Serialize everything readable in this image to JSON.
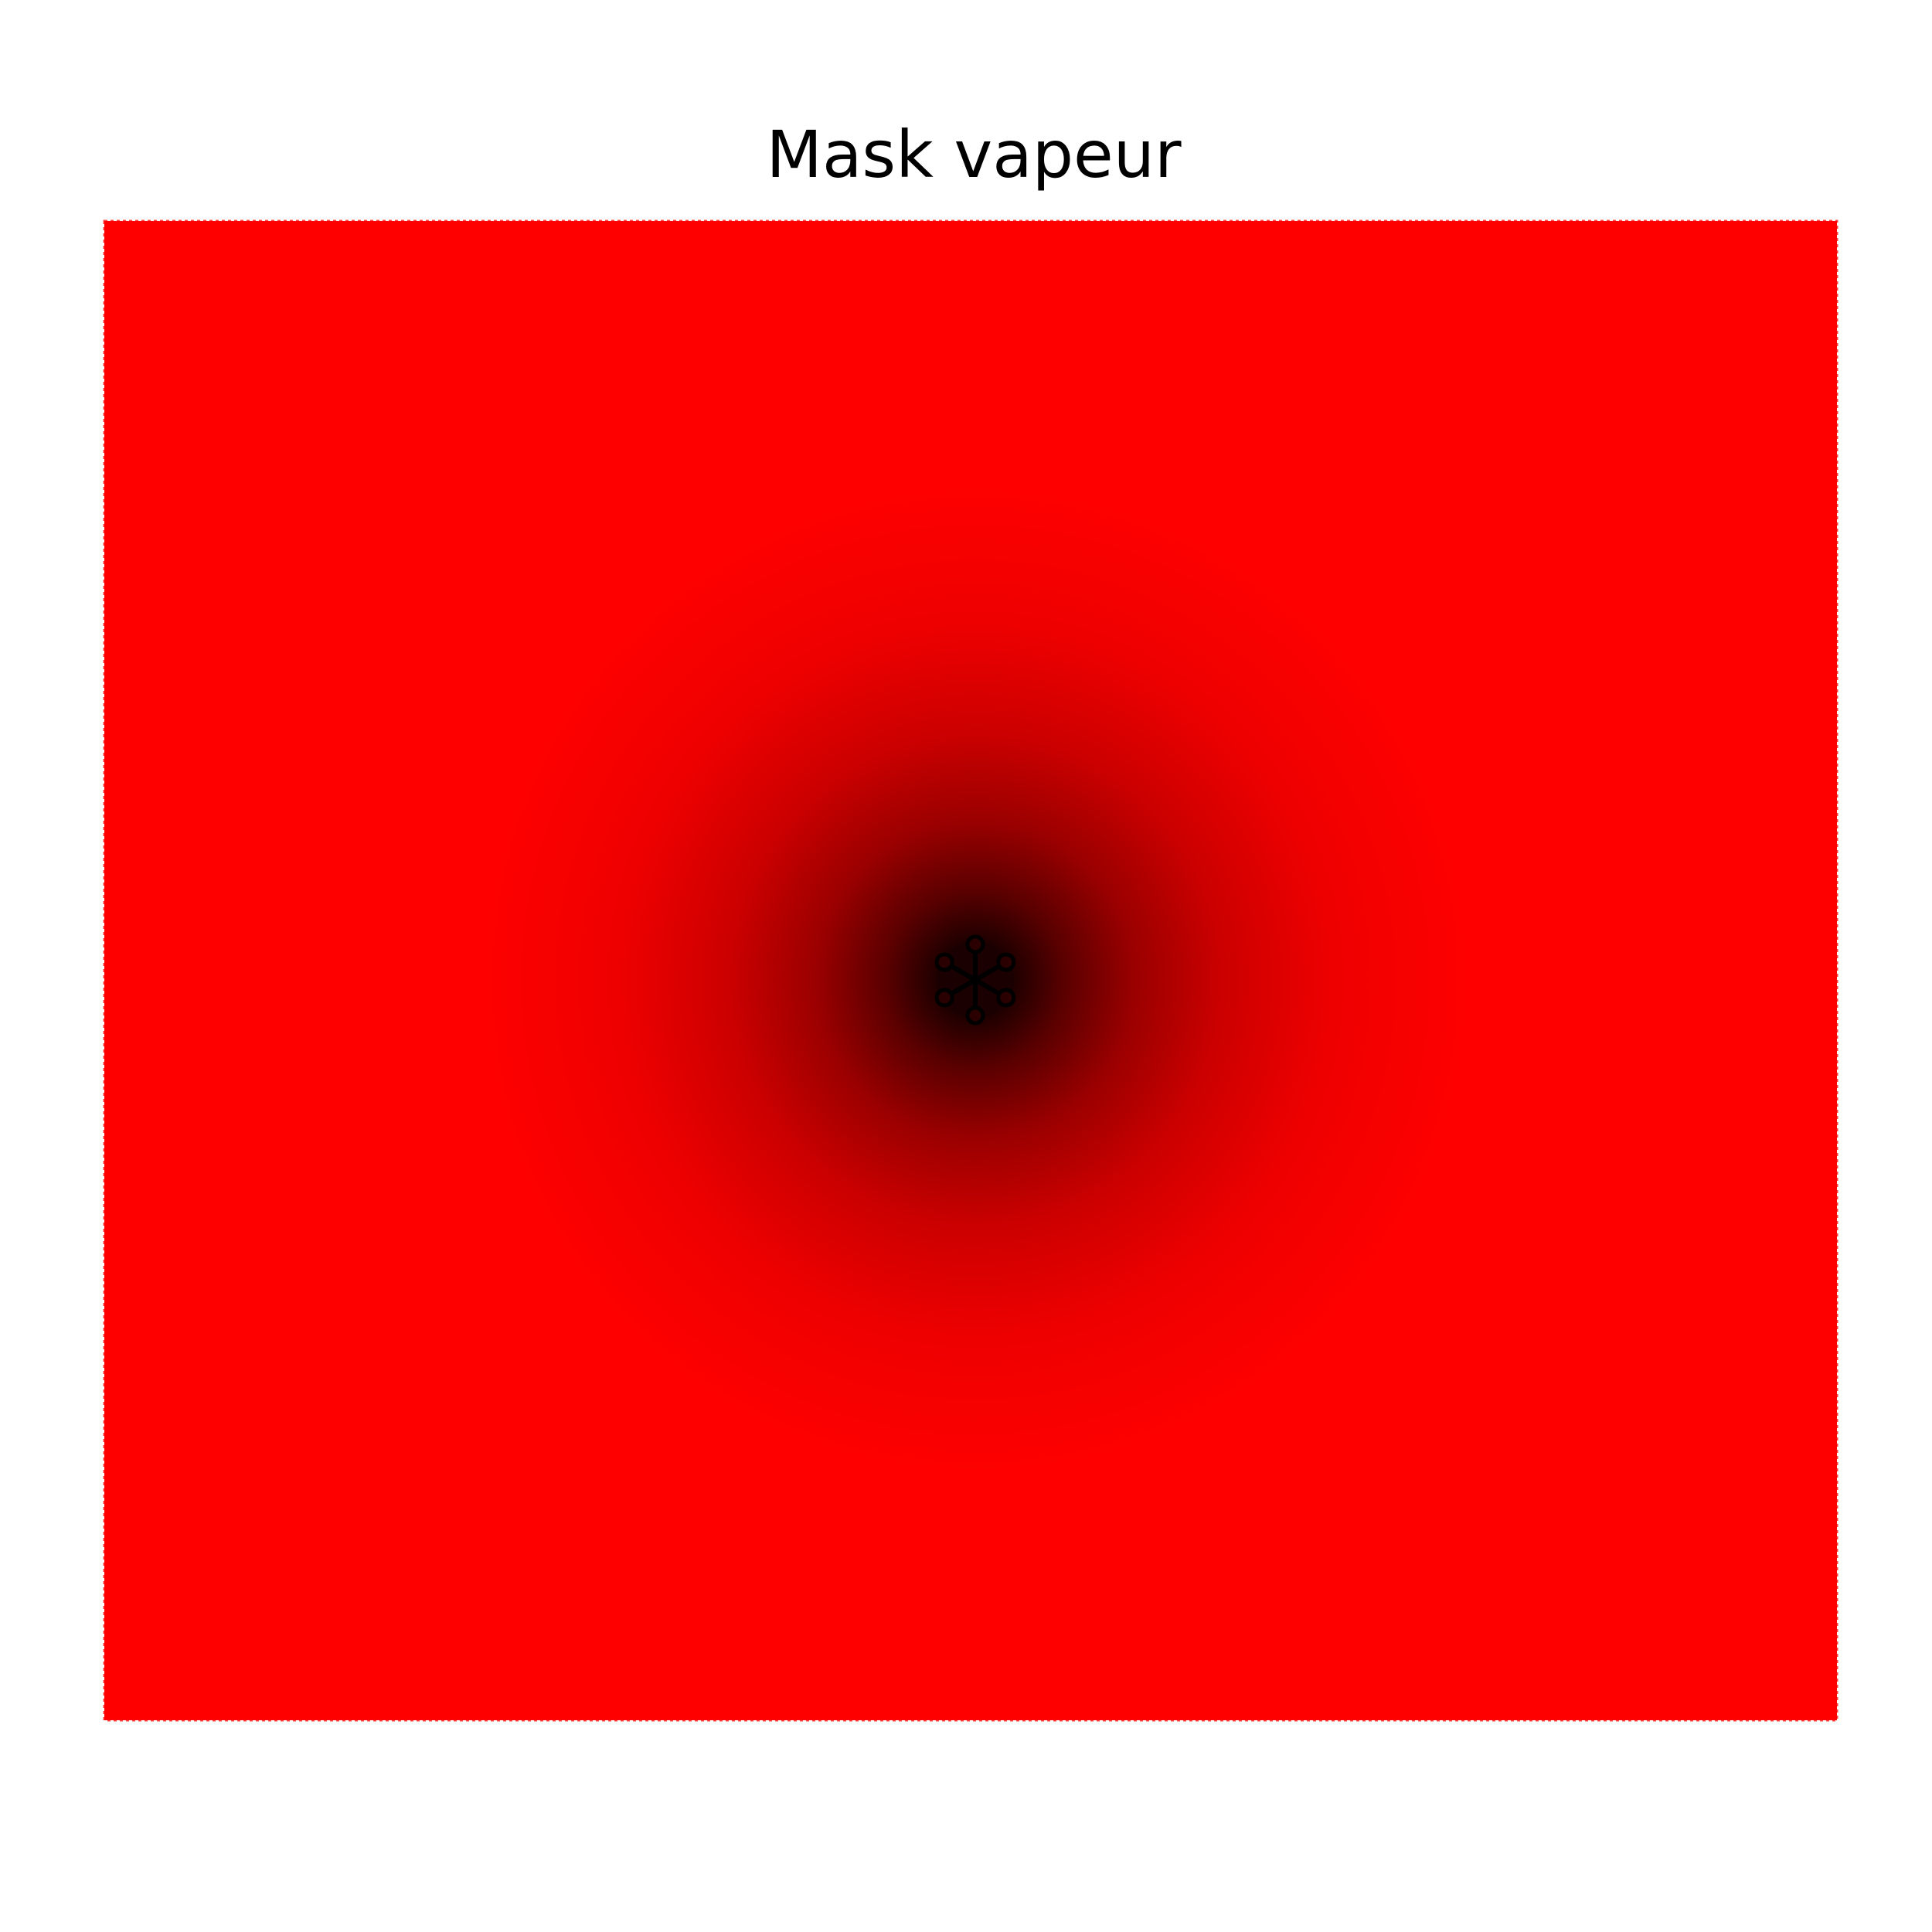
{
  "chart_data": {
    "type": "heatmap",
    "title": "Mask vapeur",
    "xlabel": "",
    "ylabel": "",
    "axes_visible": false,
    "grid": false,
    "legend": "none",
    "colors": {
      "background": "#ffffff",
      "field": "#fe0000",
      "center": "#000000"
    },
    "description_values": {
      "field_value": 1,
      "center_value": 0
    },
    "center_structure": {
      "arms": 6,
      "node_marker": "ring"
    }
  }
}
